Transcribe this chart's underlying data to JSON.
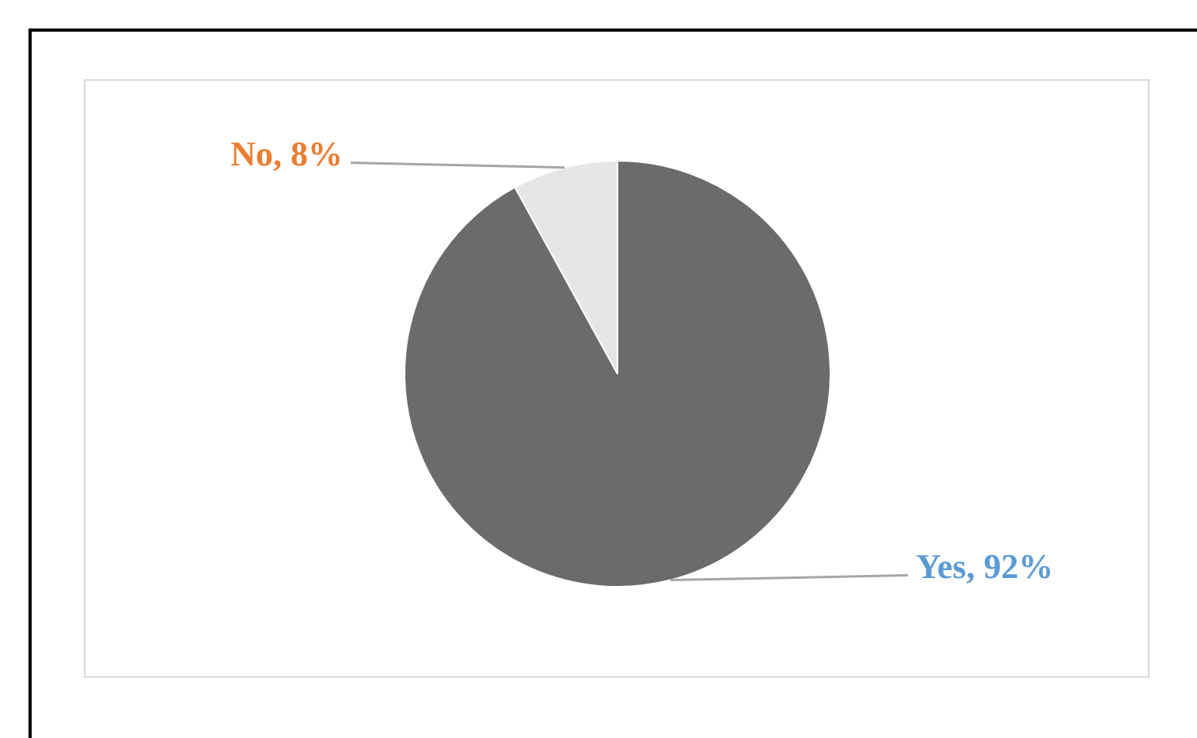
{
  "chart_data": {
    "type": "pie",
    "categories": [
      "Yes",
      "No"
    ],
    "values": [
      92,
      8
    ],
    "colors": [
      "#6b6b6b",
      "#e6e6e6"
    ],
    "value_labels": [
      "92%",
      "8%"
    ],
    "legend": false
  }
}
